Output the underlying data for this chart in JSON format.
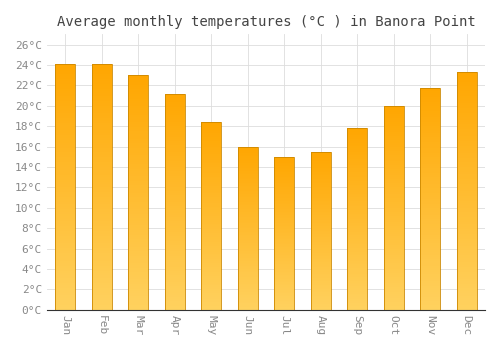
{
  "months": [
    "Jan",
    "Feb",
    "Mar",
    "Apr",
    "May",
    "Jun",
    "Jul",
    "Aug",
    "Sep",
    "Oct",
    "Nov",
    "Dec"
  ],
  "values": [
    24.1,
    24.1,
    23.0,
    21.2,
    18.4,
    16.0,
    15.0,
    15.5,
    17.8,
    20.0,
    21.7,
    23.3
  ],
  "bar_color_top": "#FFA500",
  "bar_color_bottom": "#FFD060",
  "bar_edge_color": "#CC8800",
  "title": "Average monthly temperatures (°C ) in Banora Point",
  "ylim": [
    0,
    27
  ],
  "yticks": [
    0,
    2,
    4,
    6,
    8,
    10,
    12,
    14,
    16,
    18,
    20,
    22,
    24,
    26
  ],
  "ytick_labels": [
    "0°C",
    "2°C",
    "4°C",
    "6°C",
    "8°C",
    "10°C",
    "12°C",
    "14°C",
    "16°C",
    "18°C",
    "20°C",
    "22°C",
    "24°C",
    "26°C"
  ],
  "background_color": "#FFFFFF",
  "grid_color": "#DDDDDD",
  "title_fontsize": 10,
  "tick_fontsize": 8,
  "tick_color": "#888888",
  "title_font_color": "#444444",
  "bar_width": 0.55
}
